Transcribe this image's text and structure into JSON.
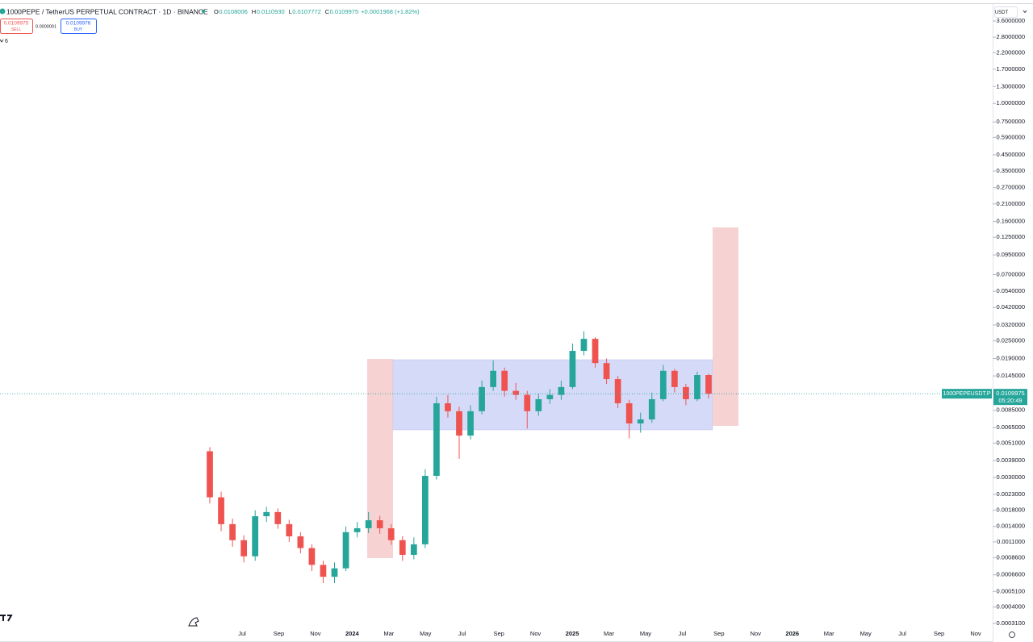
{
  "header": {
    "symbol": "1000PEPE / TetherUS PERPETUAL CONTRACT · 1D · BINANCE",
    "ohlc": [
      {
        "label": "O",
        "value": "0.0108006"
      },
      {
        "label": "H",
        "value": "0.0110930"
      },
      {
        "label": "L",
        "value": "0.0107772"
      },
      {
        "label": "C",
        "value": "0.0109975"
      }
    ],
    "change": "+0.0001968 (+1.82%)",
    "sell": {
      "price": "0.0109975",
      "label": "SELL"
    },
    "spread": "0.0000001",
    "buy": {
      "price": "0.0109976",
      "label": "BUY"
    },
    "indicators_count": "6"
  },
  "chart": {
    "type": "candlestick",
    "currency": "USDT",
    "log_scale": true,
    "up_color": "#26a69a",
    "down_color": "#ef5350",
    "ylim": [
      0.00031,
      3.6
    ],
    "yticks": [
      {
        "value": 3.6,
        "label": "3.6000000"
      },
      {
        "value": 2.8,
        "label": "2.8000000"
      },
      {
        "value": 2.2,
        "label": "2.2000000"
      },
      {
        "value": 1.7,
        "label": "1.7000000"
      },
      {
        "value": 1.3,
        "label": "1.3000000"
      },
      {
        "value": 1,
        "label": "1.0000000"
      },
      {
        "value": 0.75,
        "label": "0.7500000"
      },
      {
        "value": 0.59,
        "label": "0.5900000"
      },
      {
        "value": 0.45,
        "label": "0.4500000"
      },
      {
        "value": 0.35,
        "label": "0.3500000"
      },
      {
        "value": 0.27,
        "label": "0.2700000"
      },
      {
        "value": 0.21,
        "label": "0.2100000"
      },
      {
        "value": 0.16,
        "label": "0.1600000"
      },
      {
        "value": 0.125,
        "label": "0.1250000"
      },
      {
        "value": 0.095,
        "label": "0.0950000"
      },
      {
        "value": 0.07,
        "label": "0.0700000"
      },
      {
        "value": 0.054,
        "label": "0.0540000"
      },
      {
        "value": 0.042,
        "label": "0.0420000"
      },
      {
        "value": 0.032,
        "label": "0.0320000"
      },
      {
        "value": 0.025,
        "label": "0.0250000"
      },
      {
        "value": 0.019,
        "label": "0.0190000"
      },
      {
        "value": 0.0145,
        "label": "0.0145000"
      },
      {
        "value": 0.0085,
        "label": "0.0085000"
      },
      {
        "value": 0.0065,
        "label": "0.0065000"
      },
      {
        "value": 0.0051,
        "label": "0.0051000"
      },
      {
        "value": 0.0039,
        "label": "0.0039000"
      },
      {
        "value": 0.003,
        "label": "0.0030000"
      },
      {
        "value": 0.0023,
        "label": "0.0023000"
      },
      {
        "value": 0.0018,
        "label": "0.0018000"
      },
      {
        "value": 0.0014,
        "label": "0.0014000"
      },
      {
        "value": 0.0011,
        "label": "0.0011000"
      },
      {
        "value": 0.00086,
        "label": "0.0008600"
      },
      {
        "value": 0.00066,
        "label": "0.0006600"
      },
      {
        "value": 0.00051,
        "label": "0.0005100"
      },
      {
        "value": 0.0004,
        "label": "0.0004000"
      },
      {
        "value": 0.00031,
        "label": "0.0003100"
      }
    ],
    "x_labels": [
      "Jul",
      "Sep",
      "Nov",
      "2024",
      "Mar",
      "May",
      "Jul",
      "Sep",
      "Nov",
      "2025",
      "Mar",
      "May",
      "Jul",
      "Sep",
      "Nov",
      "2026",
      "Mar",
      "May",
      "Jul",
      "Sep",
      "Nov"
    ],
    "last": {
      "symbol": "1000PEPEUSDT.P",
      "price": 0.0109975,
      "countdown": "05:20:49"
    },
    "candles": [
      {
        "open": 0.0045,
        "high": 0.0048,
        "low": 0.002,
        "close": 0.0022
      },
      {
        "open": 0.0022,
        "high": 0.0024,
        "low": 0.0013,
        "close": 0.00145
      },
      {
        "open": 0.00145,
        "high": 0.00158,
        "low": 0.00102,
        "close": 0.00113
      },
      {
        "open": 0.00113,
        "high": 0.00122,
        "low": 0.0008,
        "close": 0.00088
      },
      {
        "open": 0.00088,
        "high": 0.0018,
        "low": 0.00082,
        "close": 0.00164
      },
      {
        "open": 0.00164,
        "high": 0.0019,
        "low": 0.0015,
        "close": 0.00175
      },
      {
        "open": 0.00175,
        "high": 0.00185,
        "low": 0.00135,
        "close": 0.00145
      },
      {
        "open": 0.00145,
        "high": 0.00155,
        "low": 0.0011,
        "close": 0.0012
      },
      {
        "open": 0.0012,
        "high": 0.00128,
        "low": 0.00092,
        "close": 0.001
      },
      {
        "open": 0.001,
        "high": 0.00106,
        "low": 0.0007,
        "close": 0.00077
      },
      {
        "open": 0.00077,
        "high": 0.00082,
        "low": 0.00058,
        "close": 0.00064
      },
      {
        "open": 0.00064,
        "high": 0.0008,
        "low": 0.00058,
        "close": 0.00073
      },
      {
        "open": 0.00073,
        "high": 0.0014,
        "low": 0.0007,
        "close": 0.00128
      },
      {
        "open": 0.00128,
        "high": 0.0015,
        "low": 0.00118,
        "close": 0.00136
      },
      {
        "open": 0.00136,
        "high": 0.00175,
        "low": 0.00126,
        "close": 0.00154
      },
      {
        "open": 0.00154,
        "high": 0.00165,
        "low": 0.00125,
        "close": 0.00136
      },
      {
        "open": 0.00136,
        "high": 0.00145,
        "low": 0.00105,
        "close": 0.00113
      },
      {
        "open": 0.00113,
        "high": 0.0012,
        "low": 0.00082,
        "close": 0.0009
      },
      {
        "open": 0.0009,
        "high": 0.00118,
        "low": 0.00084,
        "close": 0.00106
      },
      {
        "open": 0.00106,
        "high": 0.0034,
        "low": 0.001,
        "close": 0.00307
      },
      {
        "open": 0.00307,
        "high": 0.0105,
        "low": 0.0029,
        "close": 0.00948
      },
      {
        "open": 0.00948,
        "high": 0.0108,
        "low": 0.0076,
        "close": 0.00838
      },
      {
        "open": 0.00838,
        "high": 0.009,
        "low": 0.004,
        "close": 0.00574
      },
      {
        "open": 0.00574,
        "high": 0.0092,
        "low": 0.0054,
        "close": 0.00838
      },
      {
        "open": 0.00838,
        "high": 0.0135,
        "low": 0.008,
        "close": 0.0122
      },
      {
        "open": 0.0122,
        "high": 0.0185,
        "low": 0.0115,
        "close": 0.0157
      },
      {
        "open": 0.0157,
        "high": 0.0165,
        "low": 0.0105,
        "close": 0.0115
      },
      {
        "open": 0.0115,
        "high": 0.013,
        "low": 0.01,
        "close": 0.0108
      },
      {
        "open": 0.0108,
        "high": 0.0115,
        "low": 0.0064,
        "close": 0.00838
      },
      {
        "open": 0.00838,
        "high": 0.011,
        "low": 0.0078,
        "close": 0.0101
      },
      {
        "open": 0.0101,
        "high": 0.0118,
        "low": 0.0094,
        "close": 0.0108
      },
      {
        "open": 0.0108,
        "high": 0.0135,
        "low": 0.01,
        "close": 0.0122
      },
      {
        "open": 0.0122,
        "high": 0.024,
        "low": 0.0118,
        "close": 0.0214
      },
      {
        "open": 0.0214,
        "high": 0.029,
        "low": 0.02,
        "close": 0.0258
      },
      {
        "open": 0.0258,
        "high": 0.0265,
        "low": 0.0165,
        "close": 0.0177
      },
      {
        "open": 0.0177,
        "high": 0.019,
        "low": 0.0128,
        "close": 0.0138
      },
      {
        "open": 0.0138,
        "high": 0.0145,
        "low": 0.0088,
        "close": 0.00948
      },
      {
        "open": 0.00948,
        "high": 0.01,
        "low": 0.0055,
        "close": 0.00693
      },
      {
        "open": 0.00693,
        "high": 0.0082,
        "low": 0.006,
        "close": 0.00738
      },
      {
        "open": 0.00738,
        "high": 0.0112,
        "low": 0.007,
        "close": 0.0101
      },
      {
        "open": 0.0101,
        "high": 0.0172,
        "low": 0.0098,
        "close": 0.0157
      },
      {
        "open": 0.0157,
        "high": 0.0162,
        "low": 0.0112,
        "close": 0.0122
      },
      {
        "open": 0.0122,
        "high": 0.0128,
        "low": 0.0092,
        "close": 0.0101
      },
      {
        "open": 0.0101,
        "high": 0.0155,
        "low": 0.0098,
        "close": 0.0147
      },
      {
        "open": 0.0147,
        "high": 0.015,
        "low": 0.0102,
        "close": 0.011
      }
    ]
  }
}
